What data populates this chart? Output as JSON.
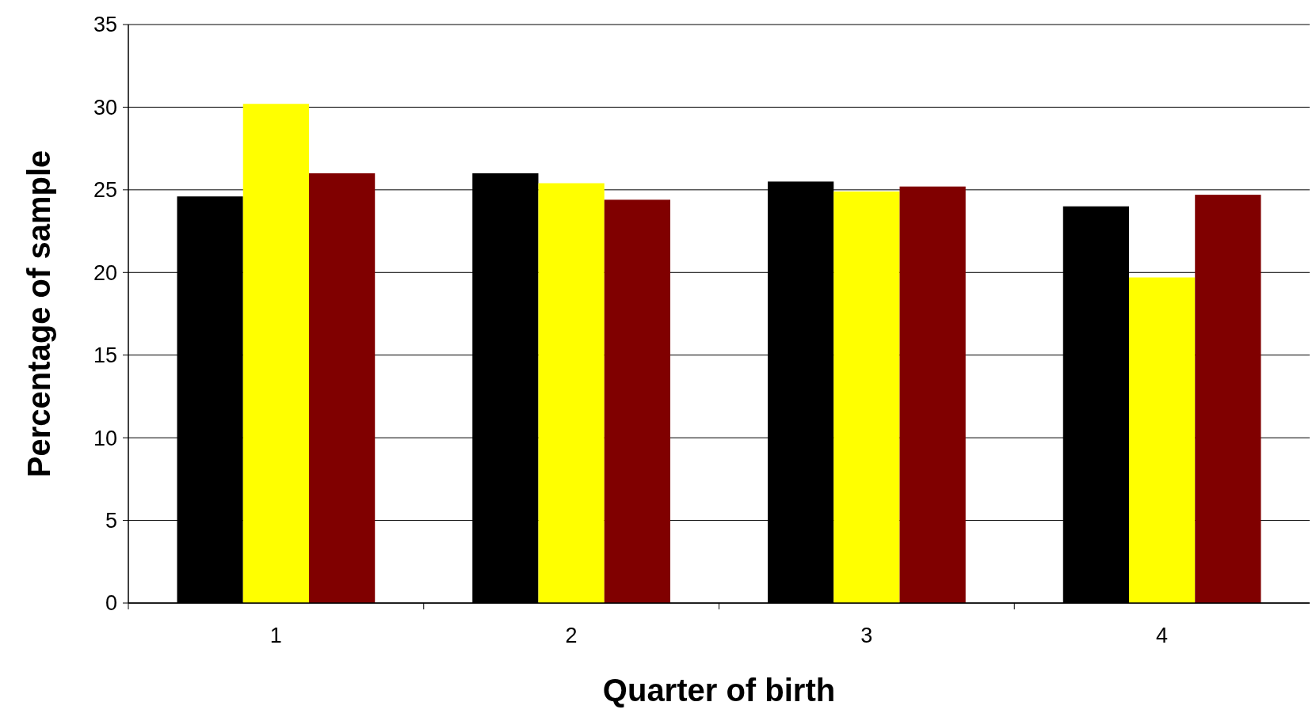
{
  "chart_data": {
    "type": "bar",
    "xlabel": "Quarter of birth",
    "ylabel": "Percentage of sample",
    "categories": [
      "1",
      "2",
      "3",
      "4"
    ],
    "series": [
      {
        "color": "#000000",
        "values": [
          24.6,
          26.0,
          25.5,
          24.0
        ]
      },
      {
        "color": "#ffff00",
        "values": [
          30.2,
          25.4,
          24.9,
          19.7
        ]
      },
      {
        "color": "#800000",
        "values": [
          26.0,
          24.4,
          25.2,
          24.7
        ]
      }
    ],
    "ylim": [
      0,
      35
    ],
    "yticks": [
      0,
      5,
      10,
      15,
      20,
      25,
      30,
      35
    ],
    "grid": "y"
  }
}
